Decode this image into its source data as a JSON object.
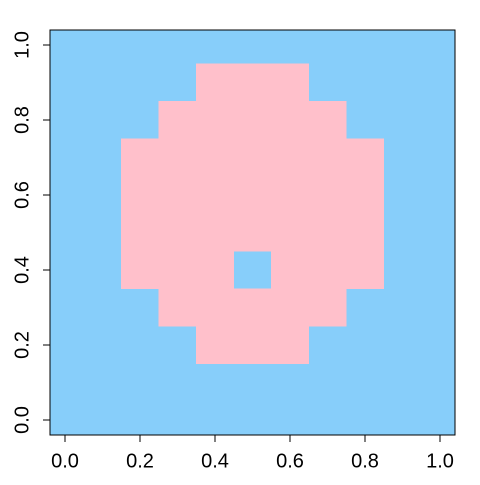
{
  "chart_data": {
    "type": "scatter",
    "series": [
      {
        "color": "#87cefa",
        "x": [
          0,
          0.1,
          0.2,
          0.3,
          0.4,
          0.5,
          0.6,
          0.7,
          0.8,
          0.9,
          1,
          0,
          0.1,
          0.2,
          0.3,
          0.4,
          0.5,
          0.6,
          0.7,
          0.8,
          0.9,
          1,
          0,
          0.1,
          0.2,
          0.3,
          0.7,
          0.8,
          0.9,
          1,
          0,
          0.1,
          0.2,
          0.8,
          0.9,
          1,
          0,
          0.1,
          0.5,
          0.9,
          1,
          0,
          0.1,
          0.9,
          1,
          0,
          0.1,
          0.9,
          1,
          0,
          0.1,
          0.9,
          1,
          0,
          0.1,
          0.2,
          0.8,
          0.9,
          1,
          0,
          0.1,
          0.2,
          0.3,
          0.7,
          0.8,
          0.9,
          1,
          0,
          0.1,
          0.2,
          0.3,
          0.4,
          0.5,
          0.6,
          0.7,
          0.8,
          0.9,
          1
        ],
        "y": [
          0,
          0,
          0,
          0,
          0,
          0,
          0,
          0,
          0,
          0,
          0,
          0.1,
          0.1,
          0.1,
          0.1,
          0.1,
          0.1,
          0.1,
          0.1,
          0.1,
          0.1,
          0.1,
          0.2,
          0.2,
          0.2,
          0.2,
          0.2,
          0.2,
          0.2,
          0.2,
          0.3,
          0.3,
          0.3,
          0.3,
          0.3,
          0.3,
          0.4,
          0.4,
          0.4,
          0.4,
          0.4,
          0.5,
          0.5,
          0.5,
          0.5,
          0.6,
          0.6,
          0.6,
          0.6,
          0.7,
          0.7,
          0.7,
          0.7,
          0.8,
          0.8,
          0.8,
          0.8,
          0.8,
          0.8,
          0.9,
          0.9,
          0.9,
          0.9,
          0.9,
          0.9,
          0.9,
          0.9,
          1,
          1,
          1,
          1,
          1,
          1,
          1,
          1,
          1,
          1,
          1
        ]
      },
      {
        "color": "#ffc0cb",
        "x": [
          0.4,
          0.5,
          0.6,
          0.3,
          0.4,
          0.5,
          0.6,
          0.7,
          0.2,
          0.3,
          0.4,
          0.6,
          0.7,
          0.8,
          0.2,
          0.3,
          0.4,
          0.5,
          0.6,
          0.7,
          0.8,
          0.2,
          0.3,
          0.4,
          0.5,
          0.6,
          0.7,
          0.8,
          0.2,
          0.3,
          0.4,
          0.5,
          0.6,
          0.7,
          0.8,
          0.3,
          0.4,
          0.5,
          0.6,
          0.7,
          0.4,
          0.5,
          0.6
        ],
        "y": [
          0.2,
          0.2,
          0.2,
          0.3,
          0.3,
          0.3,
          0.3,
          0.3,
          0.4,
          0.4,
          0.4,
          0.4,
          0.4,
          0.4,
          0.5,
          0.5,
          0.5,
          0.5,
          0.5,
          0.5,
          0.5,
          0.6,
          0.6,
          0.6,
          0.6,
          0.6,
          0.6,
          0.6,
          0.7,
          0.7,
          0.7,
          0.7,
          0.7,
          0.7,
          0.7,
          0.8,
          0.8,
          0.8,
          0.8,
          0.8,
          0.9,
          0.9,
          0.9
        ]
      }
    ],
    "xlim": [
      -0.04,
      1.04
    ],
    "ylim": [
      -0.04,
      1.04
    ],
    "xticks": [
      {
        "value": 0,
        "label": "0.0"
      },
      {
        "value": 0.2,
        "label": "0.2"
      },
      {
        "value": 0.4,
        "label": "0.4"
      },
      {
        "value": 0.6,
        "label": "0.6"
      },
      {
        "value": 0.8,
        "label": "0.8"
      },
      {
        "value": 1,
        "label": "1.0"
      }
    ],
    "yticks": [
      {
        "value": 0,
        "label": "0.0"
      },
      {
        "value": 0.2,
        "label": "0.2"
      },
      {
        "value": 0.4,
        "label": "0.4"
      },
      {
        "value": 0.6,
        "label": "0.6"
      },
      {
        "value": 0.8,
        "label": "0.8"
      },
      {
        "value": 1,
        "label": "1.0"
      }
    ]
  }
}
